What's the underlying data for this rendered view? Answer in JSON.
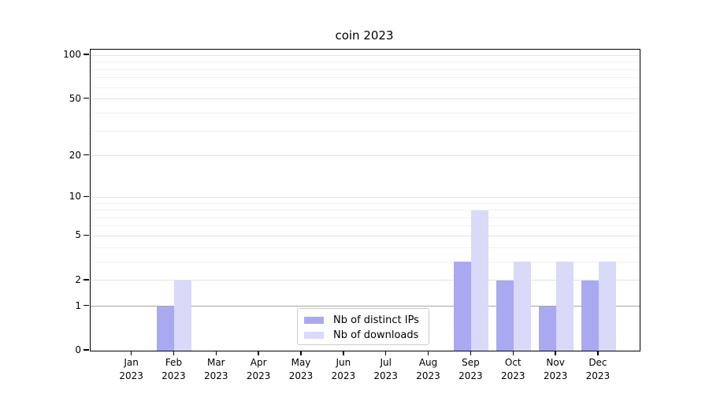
{
  "chart_data": {
    "type": "bar",
    "title": "coin 2023",
    "categories": [
      "Jan 2023",
      "Feb 2023",
      "Mar 2023",
      "Apr 2023",
      "May 2023",
      "Jun 2023",
      "Jul 2023",
      "Aug 2023",
      "Sep 2023",
      "Oct 2023",
      "Nov 2023",
      "Dec 2023"
    ],
    "series": [
      {
        "name": "Nb of distinct IPs",
        "color": "#a9a9f1",
        "values": [
          0,
          1,
          0,
          0,
          0,
          0,
          0,
          0,
          3,
          2,
          1,
          2
        ]
      },
      {
        "name": "Nb of downloads",
        "color": "#d9d9f8",
        "values": [
          0,
          2,
          0,
          0,
          0,
          0,
          0,
          0,
          8,
          3,
          3,
          3
        ]
      }
    ],
    "xlabel": "",
    "ylabel": "",
    "yscale": "log1p",
    "ylim": [
      0,
      110
    ],
    "yticks": [
      0,
      1,
      2,
      5,
      10,
      20,
      50,
      100
    ],
    "yticks_minor": [
      3,
      4,
      6,
      7,
      8,
      9,
      30,
      40,
      60,
      70,
      80,
      90
    ],
    "grid": true,
    "legend": {
      "location": "lower center",
      "entries": [
        "Nb of distinct IPs",
        "Nb of downloads"
      ]
    }
  }
}
